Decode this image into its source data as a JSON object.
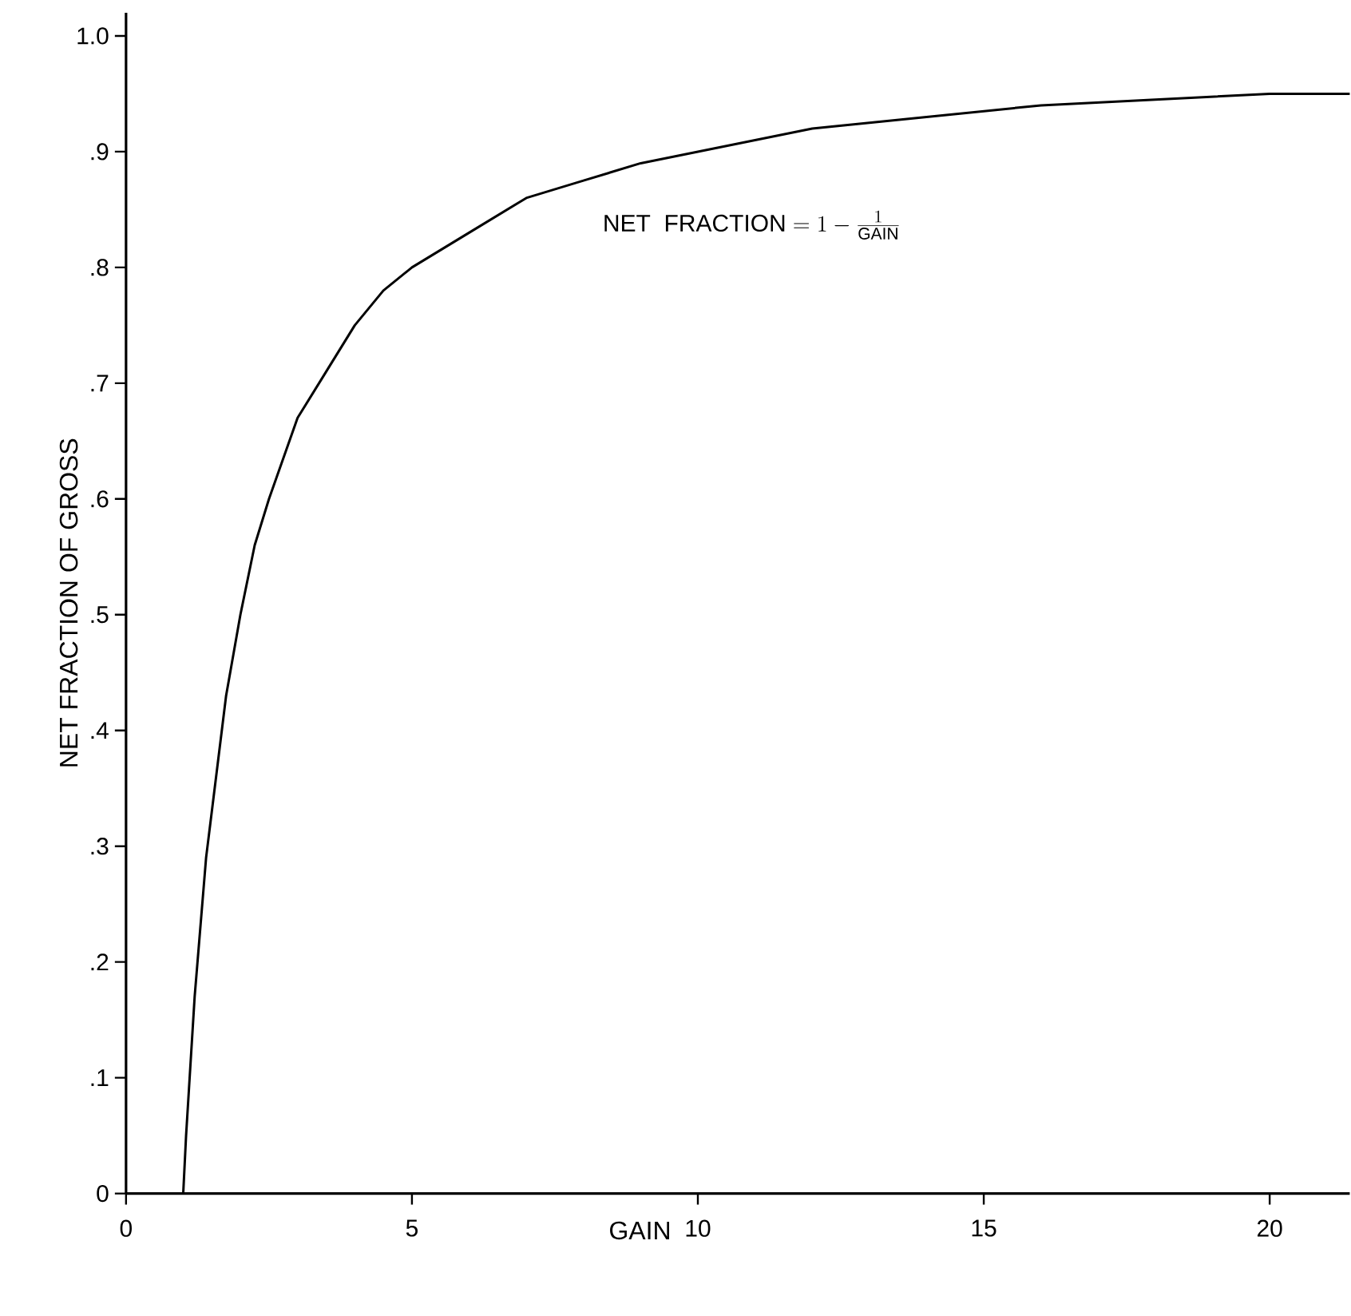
{
  "chart_data": {
    "type": "line",
    "xlabel": "GAIN",
    "ylabel": "NET FRACTION OF GROSS",
    "annotations": [
      "\\mathrm{NET\\ \\ FRACTION} = 1-\\frac{1}{\\mathrm{GAIN}}"
    ],
    "x": [
      1,
      1.05,
      1.1,
      1.2,
      1.3,
      1.4,
      1.5,
      1.75,
      2,
      2.25,
      2.5,
      3,
      3.5,
      4,
      4.5,
      5,
      6,
      7,
      8,
      9,
      10,
      12,
      14,
      16,
      18,
      20,
      21.4
    ],
    "series": [
      {
        "color": "#000000",
        "values": [
          0,
          0.05,
          0.09,
          0.17,
          0.23,
          0.29,
          0.33,
          0.43,
          0.5,
          0.56,
          0.6,
          0.67,
          0.71,
          0.75,
          0.78,
          0.8,
          0.83,
          0.86,
          0.875,
          0.89,
          0.9,
          0.92,
          0.93,
          0.94,
          0.945,
          0.95,
          0.95
        ]
      }
    ],
    "xlim": [
      0,
      21.4
    ],
    "ylim": [
      0,
      1.02
    ],
    "xticks": [
      0,
      5,
      10,
      15,
      20
    ],
    "yticks": [
      0,
      {
        "value": 0.1,
        "label": ".1"
      },
      {
        "value": 0.2,
        "label": ".2"
      },
      {
        "value": 0.3,
        "label": ".3"
      },
      {
        "value": 0.4,
        "label": ".4"
      },
      {
        "value": 0.5,
        "label": ".5"
      },
      {
        "value": 0.6,
        "label": ".6"
      },
      {
        "value": 0.7,
        "label": ".7"
      },
      {
        "value": 0.8,
        "label": ".8"
      },
      {
        "value": 0.9,
        "label": ".9"
      },
      {
        "value": 1.0,
        "label": "1.0"
      }
    ],
    "marker": "none",
    "line_style": "solid"
  }
}
